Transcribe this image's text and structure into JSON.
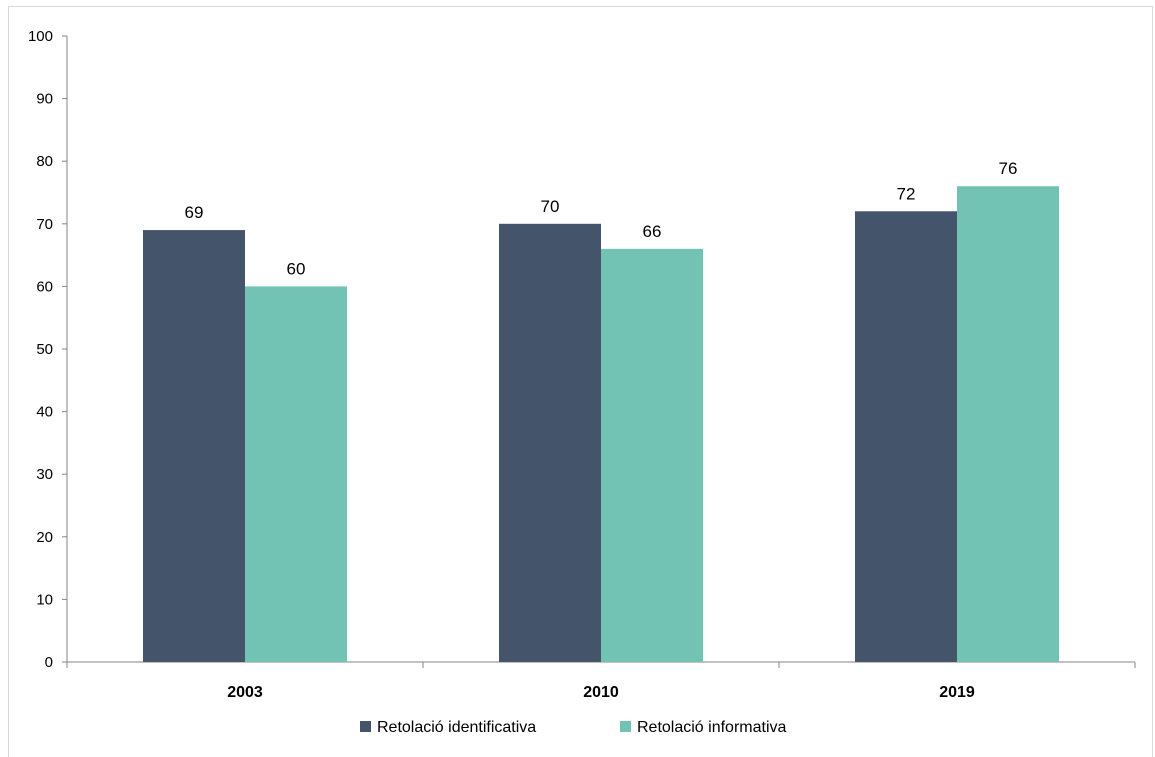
{
  "chart_data": {
    "type": "bar",
    "categories": [
      "2003",
      "2010",
      "2019"
    ],
    "series": [
      {
        "name": "Retolació identificativa",
        "values": [
          69,
          70,
          72
        ],
        "color": "#44546a"
      },
      {
        "name": "Retolació informativa",
        "values": [
          60,
          66,
          76
        ],
        "color": "#72c3b3"
      }
    ],
    "title": "",
    "xlabel": "",
    "ylabel": "",
    "ylim": [
      0,
      100
    ],
    "yticks": [
      0,
      10,
      20,
      30,
      40,
      50,
      60,
      70,
      80,
      90,
      100
    ],
    "grid": false,
    "legend": "bottom-center",
    "data_labels": true
  }
}
